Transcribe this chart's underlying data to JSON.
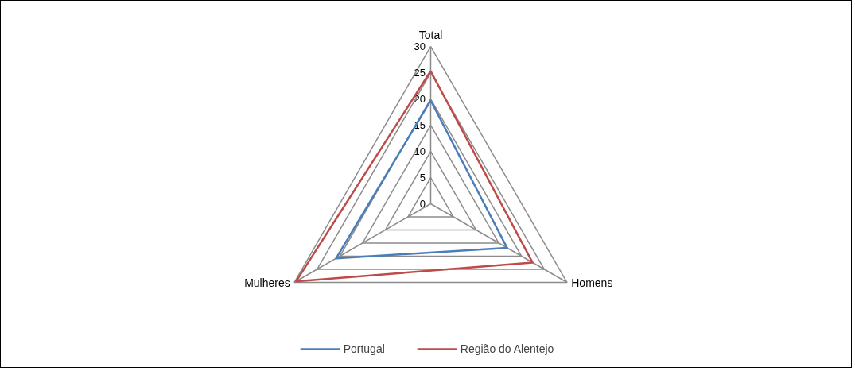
{
  "chart_data": {
    "type": "radar",
    "categories": [
      "Total",
      "Homens",
      "Mulheres"
    ],
    "series": [
      {
        "name": "Portugal",
        "color": "#4a7ebb",
        "values": [
          19.7,
          16.8,
          20.8
        ]
      },
      {
        "name": "Região do Alentejo",
        "color": "#be4b48",
        "values": [
          25.3,
          22.4,
          29.6
        ]
      }
    ],
    "ylim": [
      0,
      30
    ],
    "yticks": [
      0,
      5,
      10,
      15,
      20,
      25,
      30
    ],
    "grid": true,
    "legend": "bottom"
  }
}
